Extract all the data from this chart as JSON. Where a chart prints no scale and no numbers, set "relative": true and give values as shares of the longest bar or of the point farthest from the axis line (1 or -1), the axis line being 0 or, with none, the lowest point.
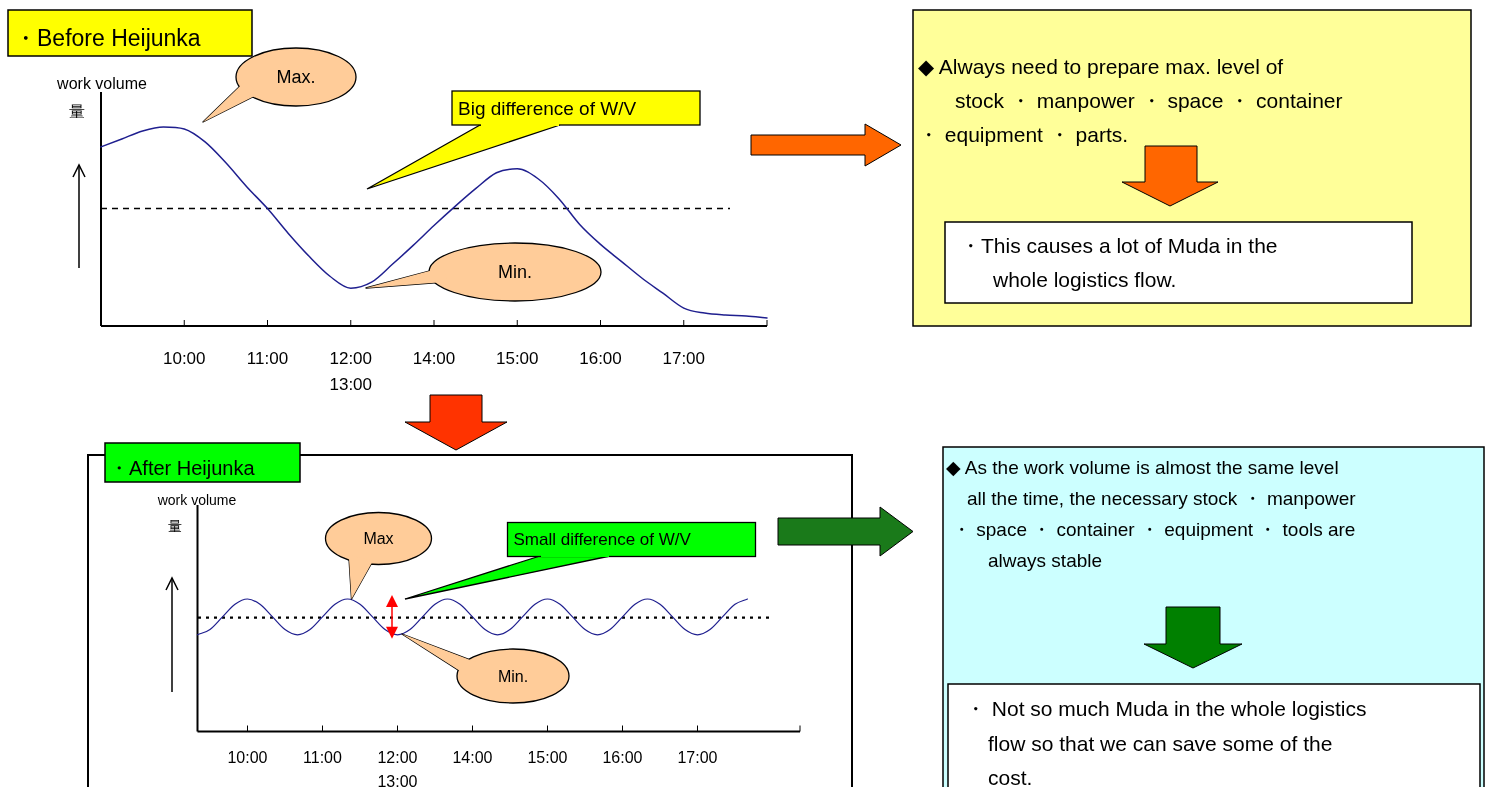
{
  "chart_data": [
    {
      "type": "line",
      "title": "・Before Heijunka",
      "ylabel": "work volume\n量",
      "relative": true,
      "categories": [
        null,
        null,
        null,
        null,
        "10:00",
        null,
        null,
        null,
        "11:00",
        null,
        null,
        null,
        "12:00\n13:00",
        null,
        null,
        null,
        "14:00",
        null,
        null,
        null,
        "15:00",
        null,
        null,
        null,
        "16:00",
        null,
        null,
        null,
        "17:00",
        null,
        null,
        null,
        null
      ],
      "series": [
        {
          "color": "#1f1f8f",
          "values": [
            0.9,
            0.94,
            0.98,
            1.0,
            0.99,
            0.925,
            0.82,
            0.7,
            0.59,
            0.465,
            0.35,
            0.25,
            0.19,
            0.22,
            0.31,
            0.405,
            0.505,
            0.6,
            0.69,
            0.77,
            0.79,
            0.74,
            0.64,
            0.51,
            0.41,
            0.325,
            0.24,
            0.165,
            0.09,
            0.065,
            0.055,
            0.05,
            0.04
          ]
        }
      ],
      "ref_lines": [
        {
          "axis": "y",
          "value": 0.59,
          "line_style": "dashed",
          "color": "#000000"
        }
      ],
      "annotations": [
        "Max.",
        "Min.",
        "Big difference of W/V"
      ]
    },
    {
      "type": "other",
      "annotations": [
        "◆  Always need to prepare max. level of\nstock ・ manpower ・ space ・ container\n・ equipment ・ parts.",
        "・This causes a lot of Muda in the\nwhole logistics flow."
      ]
    },
    {
      "type": "line",
      "title": "・After Heijunka",
      "ylabel": "work volume\n量",
      "relative": true,
      "categories": [
        null,
        null,
        null,
        null,
        "10:00",
        null,
        null,
        null,
        null,
        null,
        "11:00",
        null,
        null,
        null,
        null,
        null,
        "12:00\n13:00",
        null,
        null,
        null,
        null,
        null,
        "14:00",
        null,
        null,
        null,
        null,
        null,
        "15:00",
        null,
        null,
        null,
        null,
        null,
        "16:00",
        null,
        null,
        null,
        null,
        null,
        "17:00",
        null,
        null,
        null,
        null
      ],
      "series": [
        {
          "color": "#1f1f8f",
          "values": [
            0.73,
            0.77,
            0.865,
            0.96,
            1.0,
            0.96,
            0.865,
            0.77,
            0.73,
            0.77,
            0.865,
            0.96,
            1.0,
            0.96,
            0.865,
            0.77,
            0.73,
            0.77,
            0.865,
            0.96,
            1.0,
            0.96,
            0.865,
            0.77,
            0.73,
            0.77,
            0.865,
            0.96,
            1.0,
            0.96,
            0.865,
            0.77,
            0.73,
            0.77,
            0.865,
            0.96,
            1.0,
            0.96,
            0.865,
            0.77,
            0.73,
            0.77,
            0.865,
            0.96,
            1.0
          ]
        }
      ],
      "ref_lines": [
        {
          "axis": "y",
          "value": 0.86,
          "line_style": "dotted",
          "color": "#000000"
        }
      ],
      "annotations": [
        "Max",
        "Min.",
        "Small difference of W/V"
      ]
    },
    {
      "type": "other",
      "annotations": [
        "◆  As the work volume is almost the same level\nall the time, the necessary stock ・ manpower\n・ space ・ container ・ equipment ・ tools are\nalways stable",
        "・ Not so much Muda in the whole logistics\nflow so that we can save some of the\ncost."
      ]
    }
  ]
}
